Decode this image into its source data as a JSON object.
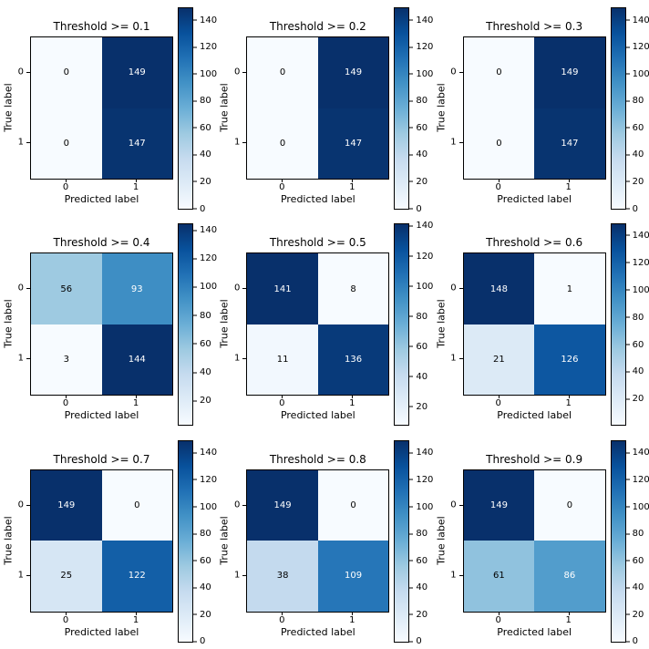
{
  "figure": {
    "background": "#ffffff",
    "text_color": "#000000",
    "cell_text_light": "#ffffff",
    "cell_text_dark": "#000000"
  },
  "chart_data": {
    "type": "heatmap",
    "subtype": "confusion-matrix-grid",
    "layout": {
      "rows": 3,
      "cols": 3,
      "grid": "3x3 subplots, each with its own right-side colorbar"
    },
    "colormap": {
      "name": "Blues",
      "stops": [
        "#f7fbff",
        "#deebf7",
        "#c6dbef",
        "#9ecae1",
        "#6baed6",
        "#4292c6",
        "#2171b5",
        "#08519c",
        "#08306b"
      ]
    },
    "shared": {
      "xlabel": "Predicted label",
      "ylabel": "True label",
      "xtick_labels": [
        "0",
        "1"
      ],
      "ytick_labels": [
        "0",
        "1"
      ]
    },
    "plots": [
      {
        "title": "Threshold >= 0.1",
        "matrix": [
          [
            0,
            149
          ],
          [
            0,
            147
          ]
        ],
        "colorbar_ticks": [
          0,
          20,
          40,
          60,
          80,
          100,
          120,
          140
        ]
      },
      {
        "title": "Threshold >= 0.2",
        "matrix": [
          [
            0,
            149
          ],
          [
            0,
            147
          ]
        ],
        "colorbar_ticks": [
          0,
          20,
          40,
          60,
          80,
          100,
          120,
          140
        ]
      },
      {
        "title": "Threshold >= 0.3",
        "matrix": [
          [
            0,
            149
          ],
          [
            0,
            147
          ]
        ],
        "colorbar_ticks": [
          0,
          20,
          40,
          60,
          80,
          100,
          120,
          140
        ]
      },
      {
        "title": "Threshold >= 0.4",
        "matrix": [
          [
            56,
            93
          ],
          [
            3,
            144
          ]
        ],
        "colorbar_ticks": [
          20,
          40,
          60,
          80,
          100,
          120,
          140
        ]
      },
      {
        "title": "Threshold >= 0.5",
        "matrix": [
          [
            141,
            8
          ],
          [
            11,
            136
          ]
        ],
        "colorbar_ticks": [
          20,
          40,
          60,
          80,
          100,
          120,
          140
        ]
      },
      {
        "title": "Threshold >= 0.6",
        "matrix": [
          [
            148,
            1
          ],
          [
            21,
            126
          ]
        ],
        "colorbar_ticks": [
          20,
          40,
          60,
          80,
          100,
          120,
          140
        ]
      },
      {
        "title": "Threshold >= 0.7",
        "matrix": [
          [
            149,
            0
          ],
          [
            25,
            122
          ]
        ],
        "colorbar_ticks": [
          0,
          20,
          40,
          60,
          80,
          100,
          120,
          140
        ]
      },
      {
        "title": "Threshold >= 0.8",
        "matrix": [
          [
            149,
            0
          ],
          [
            38,
            109
          ]
        ],
        "colorbar_ticks": [
          0,
          20,
          40,
          60,
          80,
          100,
          120,
          140
        ]
      },
      {
        "title": "Threshold >= 0.9",
        "matrix": [
          [
            149,
            0
          ],
          [
            61,
            86
          ]
        ],
        "colorbar_ticks": [
          0,
          20,
          40,
          60,
          80,
          100,
          120,
          140
        ]
      }
    ]
  }
}
